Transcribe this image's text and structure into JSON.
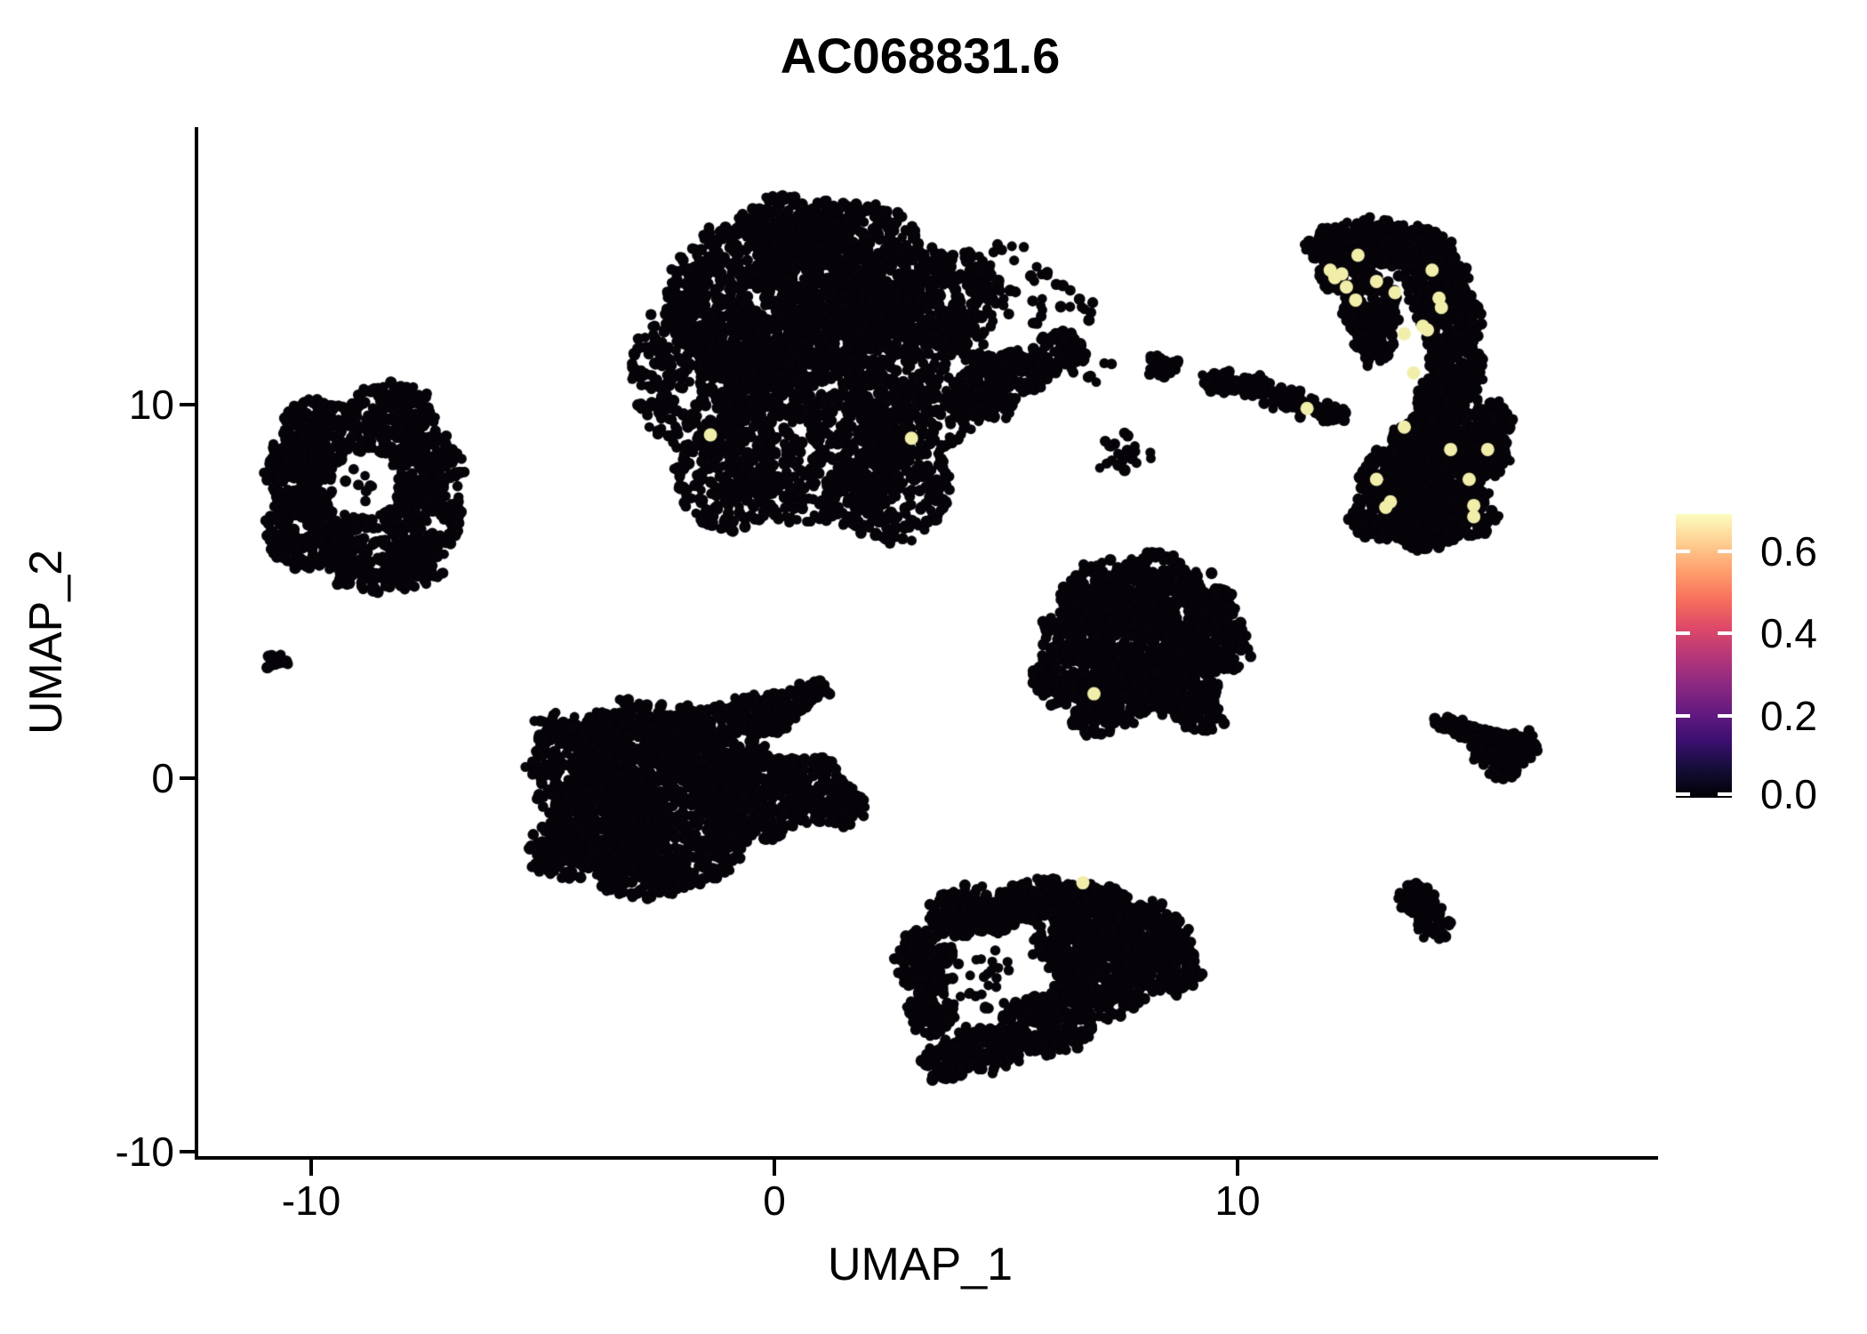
{
  "title": "AC068831.6",
  "chart_data": {
    "type": "scatter",
    "title": "AC068831.6",
    "subtitle": "",
    "xlabel": "UMAP_1",
    "ylabel": "UMAP_2",
    "x_ticks": [
      -10,
      0,
      10
    ],
    "x_tick_labels": [
      "-10",
      "0",
      "10"
    ],
    "y_ticks": [
      10,
      0,
      -10
    ],
    "y_tick_labels": [
      "10",
      "0",
      "-10"
    ],
    "xlim": [
      -12.5,
      19.1
    ],
    "ylim": [
      -10.2,
      17.4
    ],
    "grid": false,
    "background": "#ffffff",
    "point_color": "#060409",
    "highlight_color": "#f1eeaa",
    "point_radius_px": 6,
    "highlight_radius_px": 7.5,
    "colorbar": {
      "position": "right",
      "ticks": [
        0.6,
        0.4,
        0.2,
        0.0
      ],
      "tick_labels": [
        "0.6",
        "0.4",
        "0.2",
        "0.0"
      ],
      "domain": [
        0.0,
        0.69
      ],
      "colormap": "magma",
      "gradient": [
        "#000004",
        "#140e36",
        "#3b0f70",
        "#641a80",
        "#8c2981",
        "#b73779",
        "#de4968",
        "#f7705c",
        "#fe9f6d",
        "#fecf92",
        "#fcfdbf"
      ]
    },
    "clusters": [
      {
        "name": "top-center",
        "blobs": [
          [
            0.0,
            12.8,
            2.3,
            2.4,
            850
          ],
          [
            1.7,
            13.5,
            1.9,
            1.9,
            600
          ],
          [
            -1.4,
            10.8,
            1.7,
            2.1,
            450
          ],
          [
            0.9,
            9.4,
            2.1,
            2.6,
            650
          ],
          [
            3.05,
            10.8,
            1.7,
            2.1,
            450
          ],
          [
            -1.0,
            8.0,
            1.15,
            1.4,
            220
          ],
          [
            2.5,
            7.9,
            1.35,
            1.65,
            280
          ],
          [
            0.5,
            14.7,
            1.2,
            0.9,
            190
          ],
          [
            3.9,
            12.9,
            1.0,
            1.2,
            160
          ],
          [
            4.5,
            10.2,
            0.75,
            0.7,
            100
          ],
          [
            5.4,
            10.9,
            0.65,
            0.6,
            85
          ],
          [
            6.2,
            11.5,
            0.5,
            0.45,
            65
          ],
          [
            5.1,
            13.3,
            0.9,
            1.1,
            22
          ],
          [
            6.2,
            12.4,
            0.7,
            0.8,
            10
          ]
        ]
      },
      {
        "name": "left-ring",
        "hole": [
          -8.85,
          7.85,
          0.72,
          0.88
        ],
        "blobs": [
          [
            -9.9,
            9.0,
            0.95,
            1.15,
            220
          ],
          [
            -8.3,
            9.5,
            0.95,
            1.15,
            220
          ],
          [
            -7.6,
            8.3,
            0.85,
            1.05,
            190
          ],
          [
            -7.55,
            6.9,
            0.85,
            1.05,
            190
          ],
          [
            -8.8,
            6.1,
            1.0,
            1.1,
            240
          ],
          [
            -10.1,
            6.6,
            0.9,
            1.05,
            200
          ],
          [
            -10.2,
            8.0,
            0.8,
            1.0,
            170
          ],
          [
            -7.8,
            5.75,
            0.6,
            0.7,
            90
          ]
        ]
      },
      {
        "name": "left-ring-interior",
        "blobs": [
          [
            -8.85,
            7.85,
            0.5,
            0.62,
            9
          ]
        ]
      },
      {
        "name": "tiny-left-dot",
        "blobs": [
          [
            -10.8,
            3.2,
            0.22,
            0.25,
            12
          ]
        ]
      },
      {
        "name": "center-left",
        "blobs": [
          [
            -4.2,
            0.3,
            1.1,
            1.3,
            280
          ],
          [
            -3.0,
            0.9,
            1.3,
            1.2,
            350
          ],
          [
            -1.5,
            0.9,
            1.3,
            1.1,
            350
          ],
          [
            -3.6,
            -1.2,
            1.3,
            1.4,
            380
          ],
          [
            -2.0,
            -1.5,
            1.4,
            1.4,
            420
          ],
          [
            -0.5,
            -0.5,
            1.2,
            1.2,
            320
          ],
          [
            0.7,
            -0.3,
            0.9,
            0.9,
            200
          ],
          [
            1.45,
            -0.8,
            0.5,
            0.5,
            70
          ],
          [
            -0.3,
            1.7,
            0.7,
            0.55,
            95
          ],
          [
            0.25,
            2.0,
            0.5,
            0.4,
            50
          ],
          [
            0.8,
            2.35,
            0.35,
            0.3,
            35
          ],
          [
            -4.6,
            -1.9,
            0.7,
            0.8,
            120
          ],
          [
            -2.8,
            -2.6,
            1.0,
            0.6,
            150
          ],
          [
            -4.8,
            1.2,
            0.5,
            0.5,
            28
          ]
        ]
      },
      {
        "name": "center-right-triangle",
        "blobs": [
          [
            7.3,
            4.9,
            1.1,
            0.9,
            260
          ],
          [
            8.8,
            4.6,
            1.1,
            0.9,
            260
          ],
          [
            9.5,
            3.6,
            0.75,
            0.8,
            170
          ],
          [
            7.9,
            3.4,
            1.2,
            1.0,
            300
          ],
          [
            6.6,
            3.9,
            0.8,
            0.8,
            170
          ],
          [
            6.3,
            2.7,
            0.75,
            0.75,
            150
          ],
          [
            7.5,
            2.2,
            0.9,
            0.7,
            170
          ],
          [
            8.8,
            2.4,
            0.8,
            0.7,
            150
          ],
          [
            9.2,
            1.65,
            0.5,
            0.4,
            60
          ],
          [
            6.9,
            1.6,
            0.5,
            0.45,
            60
          ],
          [
            8.2,
            5.6,
            0.65,
            0.45,
            75
          ]
        ]
      },
      {
        "name": "right-banana",
        "blobs": [
          [
            12.2,
            14.2,
            0.7,
            0.65,
            140
          ],
          [
            13.0,
            14.4,
            0.7,
            0.55,
            140
          ],
          [
            13.8,
            14.1,
            0.75,
            0.7,
            160
          ],
          [
            14.3,
            13.3,
            0.7,
            0.9,
            180
          ],
          [
            14.6,
            12.2,
            0.65,
            0.95,
            190
          ],
          [
            14.7,
            11.0,
            0.6,
            0.95,
            190
          ],
          [
            14.5,
            9.9,
            0.7,
            0.9,
            190
          ],
          [
            14.2,
            8.9,
            0.9,
            0.9,
            220
          ],
          [
            13.6,
            8.0,
            1.0,
            0.9,
            240
          ],
          [
            14.6,
            7.8,
            0.8,
            0.8,
            180
          ],
          [
            13.3,
            7.0,
            0.9,
            0.6,
            150
          ],
          [
            14.9,
            7.0,
            0.7,
            0.55,
            120
          ],
          [
            12.4,
            13.5,
            0.6,
            0.7,
            110
          ],
          [
            12.9,
            12.6,
            0.6,
            0.8,
            130
          ],
          [
            12.95,
            11.7,
            0.45,
            0.6,
            65
          ],
          [
            15.3,
            8.7,
            0.6,
            0.7,
            120
          ],
          [
            15.55,
            9.5,
            0.45,
            0.6,
            70
          ],
          [
            14.0,
            6.5,
            0.7,
            0.35,
            70
          ]
        ]
      },
      {
        "name": "mid-streak",
        "blobs": [
          [
            9.6,
            10.6,
            0.35,
            0.3,
            35
          ],
          [
            10.3,
            10.5,
            0.45,
            0.25,
            40
          ],
          [
            11.0,
            10.2,
            0.45,
            0.25,
            40
          ],
          [
            11.6,
            9.95,
            0.4,
            0.22,
            35
          ],
          [
            12.05,
            9.72,
            0.3,
            0.2,
            25
          ],
          [
            8.45,
            11.0,
            0.3,
            0.28,
            25
          ],
          [
            8.2,
            11.25,
            0.14,
            0.14,
            6
          ]
        ]
      },
      {
        "name": "sparse-mid-dots",
        "blobs": [
          [
            7.5,
            8.6,
            0.65,
            0.55,
            22
          ],
          [
            6.0,
            12.6,
            1.0,
            1.2,
            16
          ],
          [
            6.9,
            10.9,
            0.5,
            0.4,
            8
          ]
        ]
      },
      {
        "name": "bottom-center",
        "hole": [
          4.55,
          -5.3,
          0.8,
          1.05
        ],
        "blobs": [
          [
            3.3,
            -4.9,
            0.7,
            0.8,
            140
          ],
          [
            4.3,
            -3.6,
            1.0,
            0.7,
            200
          ],
          [
            5.8,
            -3.3,
            1.0,
            0.6,
            200
          ],
          [
            6.9,
            -3.4,
            0.8,
            0.6,
            160
          ],
          [
            7.9,
            -4.2,
            1.0,
            0.9,
            260
          ],
          [
            8.5,
            -5.0,
            0.7,
            0.8,
            170
          ],
          [
            7.0,
            -5.5,
            1.0,
            1.0,
            260
          ],
          [
            5.9,
            -6.6,
            1.0,
            0.8,
            220
          ],
          [
            4.6,
            -7.2,
            0.9,
            0.6,
            160
          ],
          [
            3.7,
            -7.6,
            0.5,
            0.5,
            80
          ],
          [
            3.4,
            -6.2,
            0.5,
            0.7,
            90
          ],
          [
            6.3,
            -4.5,
            0.7,
            0.7,
            140
          ]
        ]
      },
      {
        "name": "bottom-center-interior",
        "blobs": [
          [
            4.5,
            -5.35,
            0.62,
            0.85,
            24
          ]
        ]
      },
      {
        "name": "bottom-right-blob",
        "blobs": [
          [
            13.9,
            -3.3,
            0.42,
            0.45,
            55
          ],
          [
            14.2,
            -3.9,
            0.36,
            0.4,
            45
          ]
        ]
      },
      {
        "name": "right-arrow",
        "blobs": [
          [
            14.45,
            1.5,
            0.22,
            0.16,
            14
          ],
          [
            14.75,
            1.35,
            0.26,
            0.18,
            20
          ],
          [
            15.1,
            1.2,
            0.3,
            0.2,
            28
          ],
          [
            15.5,
            1.0,
            0.38,
            0.3,
            48
          ],
          [
            15.9,
            0.75,
            0.45,
            0.42,
            75
          ],
          [
            16.2,
            0.95,
            0.28,
            0.28,
            30
          ],
          [
            15.75,
            0.22,
            0.3,
            0.22,
            26
          ],
          [
            15.25,
            0.5,
            0.2,
            0.18,
            12
          ]
        ]
      }
    ],
    "highlighted_cells": [
      [
        -1.38,
        9.19
      ],
      [
        2.96,
        9.1
      ],
      [
        6.9,
        2.26
      ],
      [
        6.66,
        -2.8
      ],
      [
        11.5,
        9.9
      ],
      [
        12.0,
        13.6
      ],
      [
        12.1,
        13.4
      ],
      [
        12.25,
        13.5
      ],
      [
        12.35,
        13.15
      ],
      [
        12.6,
        14.0
      ],
      [
        13.0,
        13.3
      ],
      [
        13.4,
        13.0
      ],
      [
        12.55,
        12.8
      ],
      [
        14.2,
        13.6
      ],
      [
        14.35,
        12.85
      ],
      [
        14.4,
        12.6
      ],
      [
        14.1,
        12.0
      ],
      [
        14.0,
        12.1
      ],
      [
        13.6,
        11.9
      ],
      [
        13.8,
        10.85
      ],
      [
        13.6,
        9.4
      ],
      [
        14.6,
        8.8
      ],
      [
        15.4,
        8.8
      ],
      [
        13.0,
        8.0
      ],
      [
        15.0,
        8.0
      ],
      [
        13.3,
        7.4
      ],
      [
        13.2,
        7.25
      ],
      [
        15.1,
        7.3
      ],
      [
        15.1,
        7.0
      ]
    ]
  }
}
